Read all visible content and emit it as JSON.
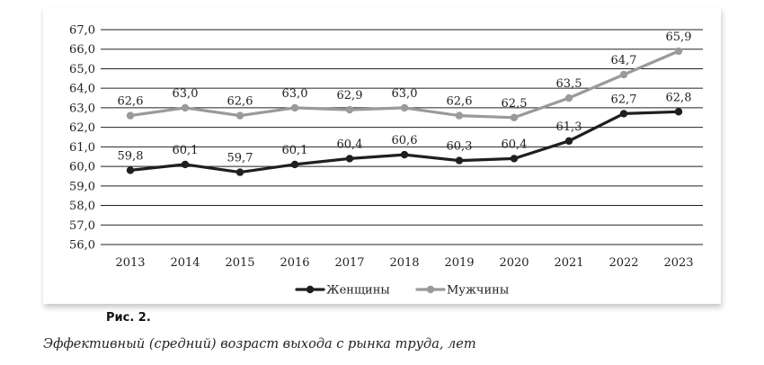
{
  "figure": {
    "number": "Рис. 2.",
    "caption": "Эффективный (средний) возраст выхода с рынка труда, лет"
  },
  "colors": {
    "women": "#1f1f1f",
    "men": "#9a9a9a",
    "grid": "#222222"
  },
  "chart_data": {
    "type": "line",
    "title": "",
    "xlabel": "",
    "ylabel": "",
    "x": [
      "2013",
      "2014",
      "2015",
      "2016",
      "2017",
      "2018",
      "2019",
      "2020",
      "2021",
      "2022",
      "2023"
    ],
    "ylim": [
      56.0,
      67.0
    ],
    "yticks": [
      "56,0",
      "57,0",
      "58,0",
      "59,0",
      "60,0",
      "61,0",
      "62,0",
      "63,0",
      "64,0",
      "65,0",
      "66,0",
      "67,0"
    ],
    "ytick_values": [
      56,
      57,
      58,
      59,
      60,
      61,
      62,
      63,
      64,
      65,
      66,
      67
    ],
    "grid": true,
    "legend_position": "bottom-center",
    "series": [
      {
        "name": "Женщины",
        "color": "#1f1f1f",
        "values": [
          59.8,
          60.1,
          59.7,
          60.1,
          60.4,
          60.6,
          60.3,
          60.4,
          61.3,
          62.7,
          62.8
        ],
        "labels": [
          "59,8",
          "60,1",
          "59,7",
          "60,1",
          "60,4",
          "60,6",
          "60,3",
          "60,4",
          "61,3",
          "62,7",
          "62,8"
        ]
      },
      {
        "name": "Мужчины",
        "color": "#9a9a9a",
        "values": [
          62.6,
          63.0,
          62.6,
          63.0,
          62.9,
          63.0,
          62.6,
          62.5,
          63.5,
          64.7,
          65.9
        ],
        "labels": [
          "62,6",
          "63,0",
          "62,6",
          "63,0",
          "62,9",
          "63,0",
          "62,6",
          "62,5",
          "63,5",
          "64,7",
          "65,9"
        ]
      }
    ]
  }
}
